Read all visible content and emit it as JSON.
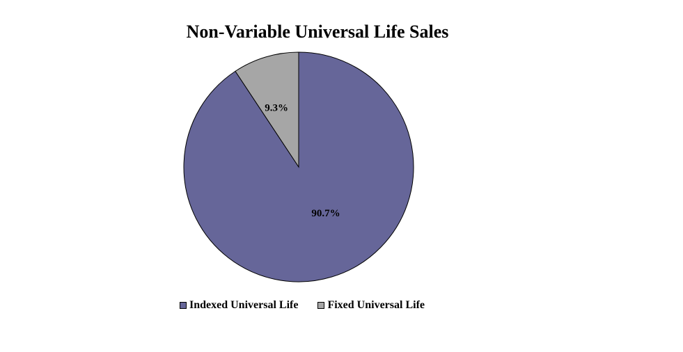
{
  "chart_data": {
    "type": "pie",
    "title": "Non-Variable Universal Life Sales",
    "slices": [
      {
        "name": "Indexed Universal Life",
        "value": 90.7,
        "label": "90.7%",
        "color": "#666699"
      },
      {
        "name": "Fixed Universal Life",
        "value": 9.3,
        "label": "9.3%",
        "color": "#a6a6a6"
      }
    ],
    "legend_position": "bottom"
  }
}
